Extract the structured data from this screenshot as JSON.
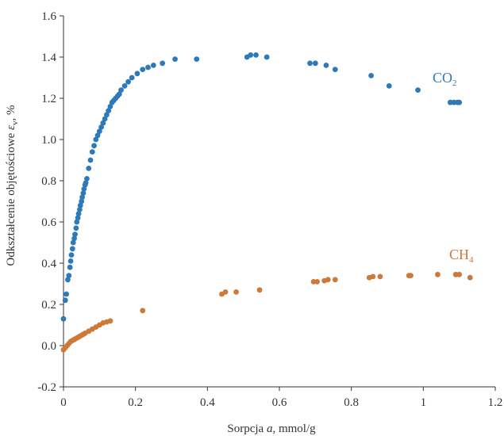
{
  "chart_data": {
    "type": "scatter",
    "xlabel": {
      "prefix": "Sorpcja ",
      "var": "a",
      "suffix": ", mmol/g"
    },
    "ylabel": {
      "prefix": "Odkształcenie objętościowe ",
      "var": "ε",
      "sub": "v",
      "suffix": ", %"
    },
    "xlim": [
      0,
      1.2
    ],
    "ylim": [
      -0.2,
      1.6
    ],
    "xticks": [
      0,
      0.2,
      0.4,
      0.6,
      0.8,
      1.0,
      1.2
    ],
    "xtick_labels": [
      "0",
      "0.2",
      "0.4",
      "0.6",
      "0.8",
      "1",
      "1.2"
    ],
    "yticks": [
      -0.2,
      0.0,
      0.2,
      0.4,
      0.6,
      0.8,
      1.0,
      1.2,
      1.4,
      1.6
    ],
    "ytick_labels": [
      "-0.2",
      "0.0",
      "0.2",
      "0.4",
      "0.6",
      "0.8",
      "1.0",
      "1.2",
      "1.4",
      "1.6"
    ],
    "grid": false,
    "series": [
      {
        "name": "CO",
        "name_sub": "2",
        "color": "#2e7ab8",
        "x": [
          0.0,
          0.005,
          0.008,
          0.012,
          0.015,
          0.018,
          0.02,
          0.022,
          0.025,
          0.027,
          0.03,
          0.032,
          0.035,
          0.037,
          0.04,
          0.042,
          0.045,
          0.047,
          0.05,
          0.052,
          0.055,
          0.057,
          0.06,
          0.062,
          0.065,
          0.07,
          0.075,
          0.08,
          0.085,
          0.09,
          0.095,
          0.1,
          0.105,
          0.11,
          0.115,
          0.12,
          0.125,
          0.13,
          0.135,
          0.14,
          0.145,
          0.15,
          0.155,
          0.16,
          0.17,
          0.18,
          0.19,
          0.205,
          0.22,
          0.235,
          0.25,
          0.275,
          0.31,
          0.37,
          0.51,
          0.52,
          0.535,
          0.565,
          0.685,
          0.7,
          0.73,
          0.755,
          0.855,
          0.905,
          0.985,
          1.075,
          1.085,
          1.095,
          1.1
        ],
        "y": [
          0.13,
          0.22,
          0.25,
          0.32,
          0.34,
          0.38,
          0.41,
          0.44,
          0.47,
          0.5,
          0.52,
          0.54,
          0.57,
          0.6,
          0.62,
          0.64,
          0.66,
          0.68,
          0.7,
          0.72,
          0.74,
          0.76,
          0.78,
          0.79,
          0.81,
          0.86,
          0.9,
          0.94,
          0.97,
          1.0,
          1.02,
          1.04,
          1.06,
          1.08,
          1.1,
          1.12,
          1.14,
          1.16,
          1.18,
          1.19,
          1.2,
          1.21,
          1.22,
          1.24,
          1.26,
          1.28,
          1.3,
          1.32,
          1.34,
          1.35,
          1.36,
          1.37,
          1.39,
          1.39,
          1.4,
          1.41,
          1.41,
          1.4,
          1.37,
          1.37,
          1.36,
          1.34,
          1.31,
          1.26,
          1.24,
          1.18,
          1.18,
          1.18,
          1.18
        ]
      },
      {
        "name": "CH",
        "name_sub": "4",
        "color": "#cc7a3a",
        "x": [
          0.0,
          0.005,
          0.01,
          0.015,
          0.02,
          0.025,
          0.03,
          0.035,
          0.04,
          0.045,
          0.05,
          0.055,
          0.06,
          0.07,
          0.08,
          0.09,
          0.1,
          0.11,
          0.12,
          0.13,
          0.22,
          0.44,
          0.45,
          0.48,
          0.545,
          0.695,
          0.705,
          0.725,
          0.735,
          0.755,
          0.85,
          0.86,
          0.88,
          0.96,
          0.965,
          1.04,
          1.09,
          1.1,
          1.13
        ],
        "y": [
          -0.02,
          -0.01,
          0.0,
          0.01,
          0.02,
          0.025,
          0.03,
          0.035,
          0.04,
          0.045,
          0.05,
          0.055,
          0.06,
          0.07,
          0.08,
          0.09,
          0.1,
          0.11,
          0.115,
          0.12,
          0.17,
          0.25,
          0.26,
          0.26,
          0.27,
          0.31,
          0.31,
          0.315,
          0.32,
          0.32,
          0.33,
          0.335,
          0.335,
          0.34,
          0.34,
          0.345,
          0.345,
          0.345,
          0.33
        ]
      }
    ]
  }
}
